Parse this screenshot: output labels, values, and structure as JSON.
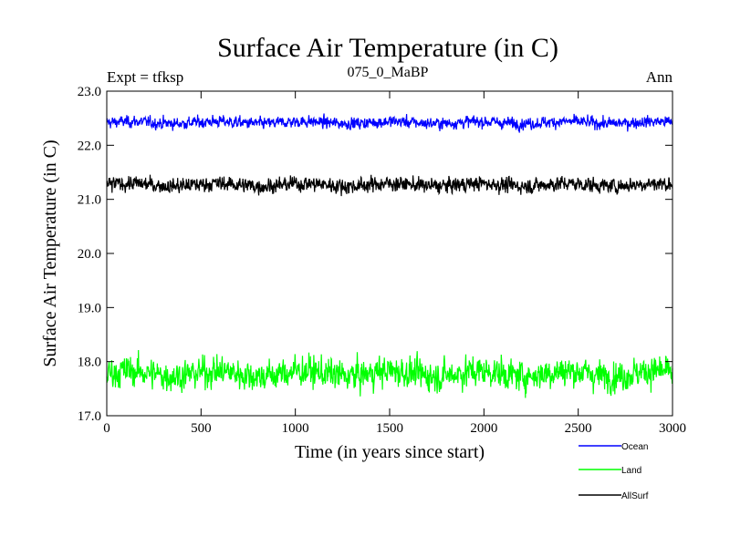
{
  "chart_data": {
    "type": "line",
    "title": "Surface Air Temperature (in C)",
    "subtitle": "075_0_MaBP",
    "left_label": "Expt = tfksp",
    "right_label": "Ann",
    "xlabel": "Time (in years since start)",
    "ylabel": "Surface Air Temperature (in C)",
    "xlim": [
      0,
      3000
    ],
    "ylim": [
      17.0,
      23.0
    ],
    "xticks": [
      0,
      500,
      1000,
      1500,
      2000,
      2500,
      3000
    ],
    "yticks": [
      "17.0",
      "18.0",
      "19.0",
      "20.0",
      "21.0",
      "22.0",
      "23.0"
    ],
    "grid": false,
    "legend_position": "bottom-right",
    "series": [
      {
        "name": "Ocean",
        "color": "#0000ff",
        "mean": 22.42,
        "noise": 0.07,
        "x": [
          0,
          3000
        ]
      },
      {
        "name": "Land",
        "color": "#00ff00",
        "mean": 17.78,
        "noise": 0.18,
        "x": [
          0,
          3000
        ]
      },
      {
        "name": "AllSurf",
        "color": "#000000",
        "mean": 21.27,
        "noise": 0.09,
        "x": [
          0,
          3000
        ]
      }
    ]
  }
}
